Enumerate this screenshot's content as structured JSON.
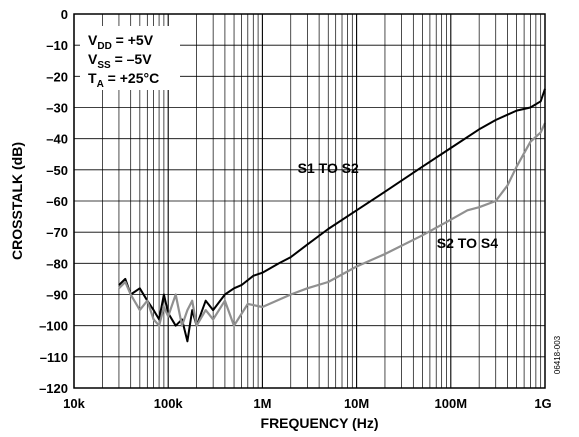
{
  "chart_data": {
    "type": "line",
    "ylabel": "CROSSTALK (dB)",
    "xlabel": "FREQUENCY (Hz)",
    "xscale": "log",
    "xlim": [
      10000,
      1000000000
    ],
    "ylim": [
      -120,
      0
    ],
    "grid": true,
    "x_ticks": [
      {
        "value": 10000,
        "label": "10k"
      },
      {
        "value": 100000,
        "label": "100k"
      },
      {
        "value": 1000000,
        "label": "1M"
      },
      {
        "value": 10000000,
        "label": "10M"
      },
      {
        "value": 100000000,
        "label": "100M"
      },
      {
        "value": 1000000000,
        "label": "1G"
      }
    ],
    "y_ticks": [
      {
        "value": 0,
        "label": "0"
      },
      {
        "value": -10,
        "label": "–10"
      },
      {
        "value": -20,
        "label": "–20"
      },
      {
        "value": -30,
        "label": "–30"
      },
      {
        "value": -40,
        "label": "–40"
      },
      {
        "value": -50,
        "label": "–50"
      },
      {
        "value": -60,
        "label": "–60"
      },
      {
        "value": -70,
        "label": "–70"
      },
      {
        "value": -80,
        "label": "–80"
      },
      {
        "value": -90,
        "label": "–90"
      },
      {
        "value": -100,
        "label": "–100"
      },
      {
        "value": -110,
        "label": "–110"
      },
      {
        "value": -120,
        "label": "–120"
      }
    ],
    "conditions": [
      {
        "symbol": "V",
        "sub": "DD",
        "rest": " = +5V"
      },
      {
        "symbol": "V",
        "sub": "SS",
        "rest": " = –5V"
      },
      {
        "symbol": "T",
        "sub": "A",
        "rest": " = +25°C"
      }
    ],
    "figure_code": "06418-003",
    "series": [
      {
        "name": "S1 TO S2",
        "color": "#000000",
        "x": [
          30000,
          35000,
          40000,
          50000,
          60000,
          70000,
          80000,
          90000,
          100000,
          120000,
          140000,
          160000,
          180000,
          200000,
          250000,
          300000,
          400000,
          500000,
          600000,
          800000,
          1000000,
          1500000,
          2000000,
          3000000,
          5000000,
          10000000,
          20000000,
          50000000,
          100000000,
          200000000,
          300000000,
          500000000,
          700000000,
          900000000,
          1000000000
        ],
        "y": [
          -87,
          -85,
          -90,
          -88,
          -92,
          -95,
          -98,
          -90,
          -96,
          -100,
          -98,
          -105,
          -95,
          -100,
          -92,
          -95,
          -90,
          -88,
          -87,
          -84,
          -83,
          -80,
          -78,
          -74,
          -69,
          -63,
          -57,
          -49,
          -43,
          -37,
          -34,
          -31,
          -30,
          -28,
          -24
        ]
      },
      {
        "name": "S2 TO S4",
        "color": "#909090",
        "x": [
          30000,
          35000,
          40000,
          50000,
          60000,
          70000,
          80000,
          90000,
          100000,
          120000,
          140000,
          160000,
          180000,
          200000,
          250000,
          300000,
          400000,
          500000,
          700000,
          1000000,
          2000000,
          3000000,
          5000000,
          10000000,
          20000000,
          50000000,
          100000000,
          150000000,
          200000000,
          300000000,
          400000000,
          500000000,
          700000000,
          900000000,
          1000000000
        ],
        "y": [
          -88,
          -86,
          -90,
          -95,
          -92,
          -98,
          -100,
          -94,
          -97,
          -90,
          -100,
          -95,
          -92,
          -100,
          -95,
          -98,
          -92,
          -100,
          -93,
          -94,
          -90,
          -88,
          -86,
          -81,
          -77,
          -71,
          -66,
          -63,
          -62,
          -60,
          -55,
          -49,
          -41,
          -38,
          -35
        ]
      }
    ]
  }
}
